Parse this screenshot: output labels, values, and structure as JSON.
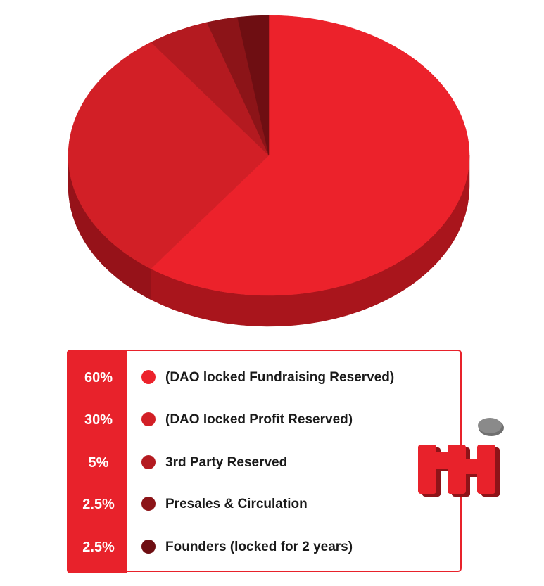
{
  "chart_data": {
    "type": "pie",
    "style": "3d",
    "slices": [
      {
        "label": "(DAO locked Fundraising Reserved)",
        "value": 60,
        "value_label": "60%",
        "color": "#ec222b",
        "side_color": "#a9151c"
      },
      {
        "label": "(DAO locked Profit Reserved)",
        "value": 30,
        "value_label": "30%",
        "color": "#d21f26",
        "side_color": "#961219"
      },
      {
        "label": "3rd Party Reserved",
        "value": 5,
        "value_label": "5%",
        "color": "#b41a20",
        "side_color": "#7e0f14"
      },
      {
        "label": "Presales & Circulation",
        "value": 2.5,
        "value_label": "2.5%",
        "color": "#8c1418",
        "side_color": "#5e0b0f"
      },
      {
        "label": "Founders (locked for 2 years)",
        "value": 2.5,
        "value_label": "2.5%",
        "color": "#6e0e12",
        "side_color": "#48080b"
      }
    ],
    "legend_placement": "bottom"
  },
  "logo": {
    "icon": "brand-logo-icon",
    "colors": {
      "body": "#e8222b",
      "shadow": "#8e1318",
      "dot": "#8a8a8a"
    }
  }
}
